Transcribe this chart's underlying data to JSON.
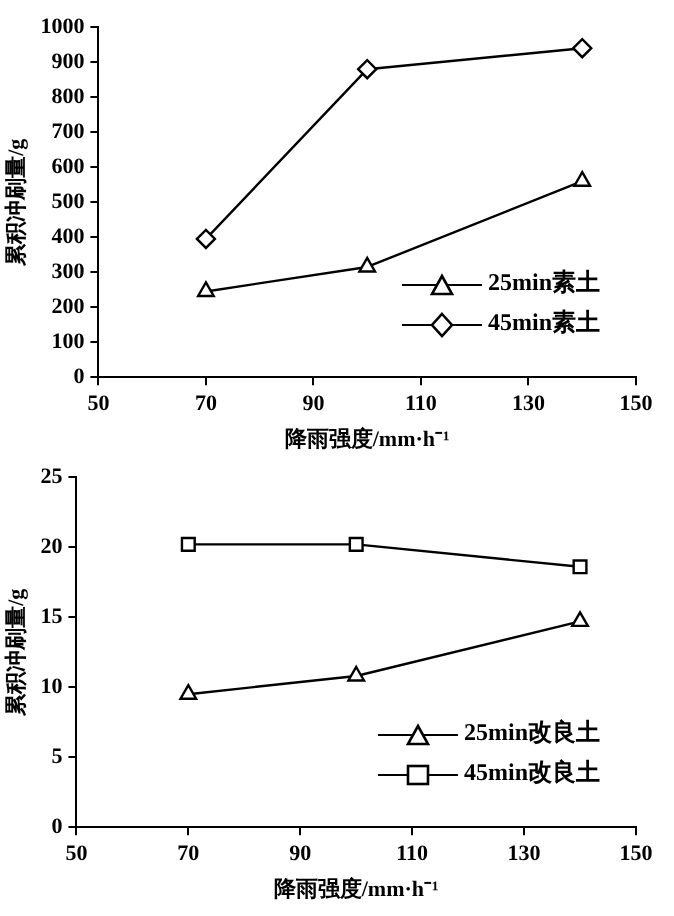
{
  "chart_data": [
    {
      "type": "line",
      "xlabel": "降雨强度/mm·h⁻¹",
      "ylabel": "累积冲刷量/g",
      "x": [
        70,
        100,
        140
      ],
      "series": [
        {
          "name": "25min素土",
          "color": "#000000",
          "marker": "triangle",
          "values": [
            245,
            315,
            560
          ]
        },
        {
          "name": "45min素土",
          "color": "#000000",
          "marker": "diamond",
          "values": [
            395,
            880,
            940
          ]
        }
      ],
      "xlim": [
        50,
        150
      ],
      "xticks": [
        50,
        70,
        90,
        110,
        130,
        150
      ],
      "ylim": [
        0,
        1000
      ],
      "yticks": [
        0,
        100,
        200,
        300,
        400,
        500,
        600,
        700,
        800,
        900,
        1000
      ],
      "grid": false,
      "legend": "bottom right"
    },
    {
      "type": "line",
      "xlabel": "降雨强度/mm·h⁻¹",
      "ylabel": "累积冲刷量/g",
      "x": [
        70,
        100,
        140
      ],
      "series": [
        {
          "name": "25min改良土",
          "color": "#000000",
          "marker": "triangle",
          "values": [
            9.5,
            10.8,
            14.7
          ]
        },
        {
          "name": "45min改良土",
          "color": "#000000",
          "marker": "square",
          "values": [
            20.2,
            20.2,
            18.6
          ]
        }
      ],
      "xlim": [
        50,
        150
      ],
      "xticks": [
        50,
        70,
        90,
        110,
        130,
        150
      ],
      "ylim": [
        0,
        25
      ],
      "yticks": [
        0,
        5,
        10,
        15,
        20,
        25
      ],
      "grid": false,
      "legend": "bottom right"
    }
  ]
}
